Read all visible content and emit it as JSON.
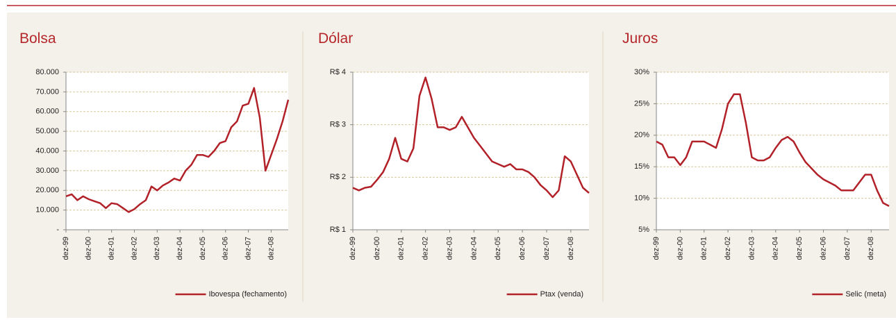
{
  "chart_data": [
    {
      "type": "line",
      "title": "Bolsa",
      "categories": [
        "dez-99",
        null,
        null,
        null,
        "dez-00",
        null,
        null,
        null,
        "dez-01",
        null,
        null,
        null,
        "dez-02",
        null,
        null,
        null,
        "dez-03",
        null,
        null,
        null,
        "dez-04",
        null,
        null,
        null,
        "dez-05",
        null,
        null,
        null,
        "dez-06",
        null,
        null,
        null,
        "dez-07",
        null,
        null,
        null,
        "dez-08",
        null,
        null,
        null
      ],
      "series": [
        {
          "name": "Ibovespa (fechamento)",
          "color": "#b22028",
          "values": [
            17000,
            18000,
            15000,
            17000,
            15500,
            14500,
            13500,
            11000,
            13500,
            13000,
            11000,
            9000,
            10500,
            13000,
            15000,
            22000,
            20000,
            22500,
            24000,
            26000,
            25000,
            30000,
            33000,
            38000,
            38000,
            37000,
            40000,
            44000,
            45000,
            52000,
            55000,
            63000,
            64000,
            72000,
            57000,
            30000,
            38000,
            46000,
            55000,
            66000
          ]
        }
      ],
      "ylim": [
        0,
        80000
      ],
      "yticks": [
        {
          "value": 0,
          "label": "-"
        },
        {
          "value": 10000,
          "label": "10.000"
        },
        {
          "value": 20000,
          "label": "20.000"
        },
        {
          "value": 30000,
          "label": "30.000"
        },
        {
          "value": 40000,
          "label": "40.000"
        },
        {
          "value": 50000,
          "label": "50.000"
        },
        {
          "value": 60000,
          "label": "60.000"
        },
        {
          "value": 70000,
          "label": "70.000"
        },
        {
          "value": 80000,
          "label": "80.000"
        }
      ],
      "grid": true
    },
    {
      "type": "line",
      "title": "Dólar",
      "categories": [
        "dez-99",
        null,
        null,
        null,
        "dez-00",
        null,
        null,
        null,
        "dez-01",
        null,
        null,
        null,
        "dez-02",
        null,
        null,
        null,
        "dez-03",
        null,
        null,
        null,
        "dez-04",
        null,
        null,
        null,
        "dez-05",
        null,
        null,
        null,
        "dez-06",
        null,
        null,
        null,
        "dez-07",
        null,
        null,
        null,
        "dez-08",
        null,
        null,
        null
      ],
      "series": [
        {
          "name": "Ptax (venda)",
          "color": "#b22028",
          "values": [
            1.8,
            1.75,
            1.8,
            1.82,
            1.95,
            2.1,
            2.35,
            2.75,
            2.35,
            2.3,
            2.55,
            3.55,
            3.9,
            3.5,
            2.95,
            2.95,
            2.9,
            2.95,
            3.15,
            2.95,
            2.75,
            2.6,
            2.45,
            2.3,
            2.25,
            2.2,
            2.25,
            2.15,
            2.15,
            2.1,
            2.0,
            1.85,
            1.75,
            1.62,
            1.75,
            2.4,
            2.3,
            2.05,
            1.8,
            1.7
          ]
        }
      ],
      "ylim": [
        1,
        4
      ],
      "yticks": [
        {
          "value": 1,
          "label": "R$ 1"
        },
        {
          "value": 2,
          "label": "R$ 2"
        },
        {
          "value": 3,
          "label": "R$ 3"
        },
        {
          "value": 4,
          "label": "R$ 4"
        }
      ],
      "grid": true
    },
    {
      "type": "line",
      "title": "Juros",
      "categories": [
        "dez-99",
        null,
        null,
        null,
        "dez-00",
        null,
        null,
        null,
        "dez-01",
        null,
        null,
        null,
        "dez-02",
        null,
        null,
        null,
        "dez-03",
        null,
        null,
        null,
        "dez-04",
        null,
        null,
        null,
        "dez-05",
        null,
        null,
        null,
        "dez-06",
        null,
        null,
        null,
        "dez-07",
        null,
        null,
        null,
        "dez-08",
        null,
        null,
        null
      ],
      "series": [
        {
          "name": "Selic (meta)",
          "color": "#b22028",
          "values": [
            19,
            18.5,
            16.5,
            16.5,
            15.25,
            16.5,
            19,
            19,
            19,
            18.5,
            18,
            21,
            25,
            26.5,
            26.5,
            22,
            16.5,
            16,
            16,
            16.5,
            18,
            19.25,
            19.75,
            19,
            17.25,
            15.75,
            14.75,
            13.75,
            13,
            12.5,
            12,
            11.25,
            11.25,
            11.25,
            12.5,
            13.75,
            13.75,
            11.25,
            9.25,
            8.75
          ]
        }
      ],
      "ylim": [
        5,
        30
      ],
      "yticks": [
        {
          "value": 5,
          "label": "5%"
        },
        {
          "value": 10,
          "label": "10%"
        },
        {
          "value": 15,
          "label": "15%"
        },
        {
          "value": 20,
          "label": "20%"
        },
        {
          "value": 25,
          "label": "25%"
        },
        {
          "value": 30,
          "label": "30%"
        }
      ],
      "grid": true
    }
  ]
}
